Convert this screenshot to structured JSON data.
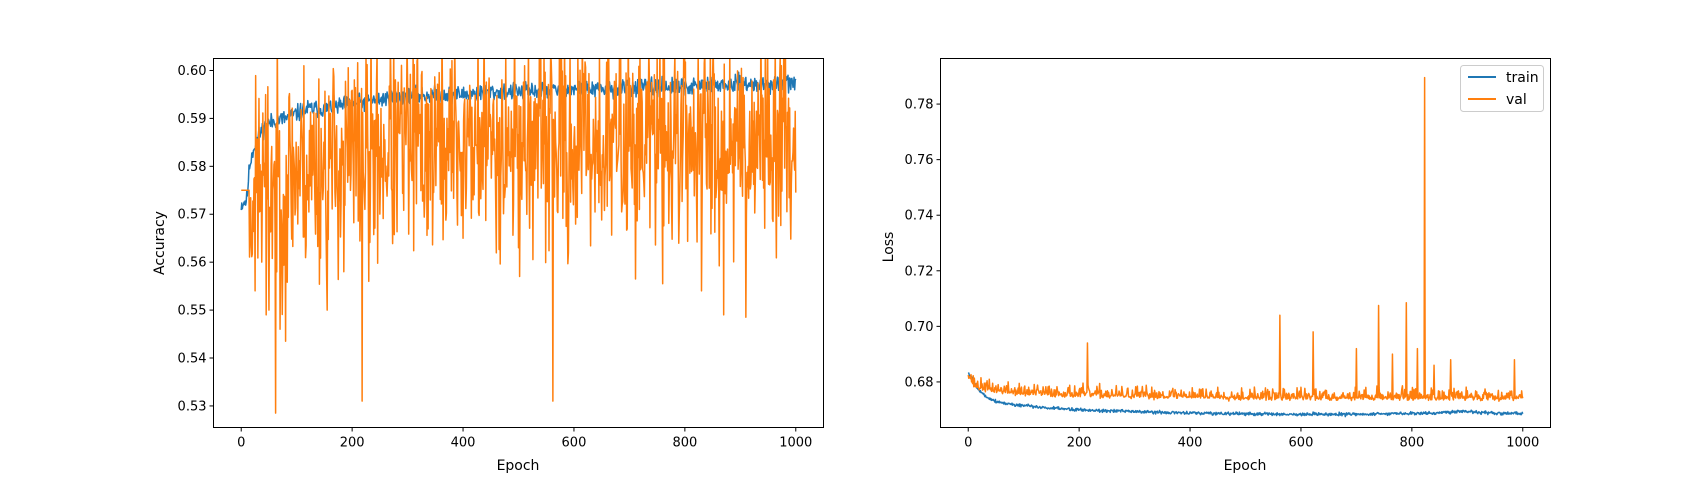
{
  "chart_data": [
    {
      "type": "line",
      "title": "",
      "xlabel": "Epoch",
      "ylabel": "Accuracy",
      "xlim": [
        -50,
        1050
      ],
      "ylim": [
        0.5255,
        0.6025
      ],
      "xticks": [
        0,
        200,
        400,
        600,
        800,
        1000
      ],
      "xtick_labels": [
        "0",
        "200",
        "400",
        "600",
        "800",
        "1000"
      ],
      "yticks": [
        0.53,
        0.54,
        0.55,
        0.56,
        0.57,
        0.58,
        0.59,
        0.6
      ],
      "ytick_labels": [
        "0.53",
        "0.54",
        "0.55",
        "0.56",
        "0.57",
        "0.58",
        "0.59",
        "0.60"
      ],
      "grid": false,
      "legend": null,
      "series": [
        {
          "color": "#1f77b4",
          "x": [
            0,
            10,
            15,
            20,
            30,
            40,
            50,
            60,
            80,
            100,
            120,
            150,
            200,
            250,
            300,
            350,
            400,
            450,
            500,
            550,
            600,
            650,
            700,
            750,
            800,
            850,
            900,
            950,
            1000
          ],
          "y": [
            0.572,
            0.573,
            0.58,
            0.583,
            0.586,
            0.588,
            0.589,
            0.5895,
            0.59,
            0.591,
            0.592,
            0.592,
            0.593,
            0.594,
            0.5945,
            0.595,
            0.595,
            0.5955,
            0.5955,
            0.596,
            0.596,
            0.596,
            0.5965,
            0.5965,
            0.5965,
            0.597,
            0.597,
            0.597,
            0.5975
          ],
          "noise": 0.0009,
          "seed": 11
        },
        {
          "color": "#ff7f0e",
          "x": [
            0,
            15,
            30,
            60,
            100,
            150,
            200,
            250,
            300,
            400,
            500,
            600,
            700,
            800,
            900,
            1000
          ],
          "y": [
            0.575,
            0.575,
            0.576,
            0.577,
            0.579,
            0.58,
            0.582,
            0.583,
            0.584,
            0.585,
            0.585,
            0.585,
            0.5855,
            0.586,
            0.586,
            0.5865
          ],
          "noise": 0.011,
          "spread_start": 15,
          "spikes": [
            [
              25,
              0.554
            ],
            [
              45,
              0.549
            ],
            [
              50,
              0.55
            ],
            [
              62,
              0.5285
            ],
            [
              70,
              0.546
            ],
            [
              80,
              0.5435
            ],
            [
              155,
              0.55
            ],
            [
              185,
              0.558
            ],
            [
              218,
              0.531
            ],
            [
              230,
              0.556
            ],
            [
              300,
              0.556
            ],
            [
              400,
              0.565
            ],
            [
              500,
              0.563
            ],
            [
              562,
              0.531
            ],
            [
              590,
              0.562
            ],
            [
              760,
              0.5555
            ],
            [
              830,
              0.554
            ],
            [
              870,
              0.549
            ],
            [
              910,
              0.5485
            ],
            [
              1000,
              0.5745
            ]
          ],
          "peaks": [
            [
              270,
              0.5965
            ],
            [
              300,
              0.5975
            ],
            [
              560,
              0.5975
            ],
            [
              740,
              0.5975
            ],
            [
              800,
              0.5985
            ],
            [
              850,
              0.5985
            ],
            [
              905,
              0.5985
            ],
            [
              960,
              0.598
            ]
          ],
          "seed": 23
        }
      ]
    },
    {
      "type": "line",
      "title": "",
      "xlabel": "Epoch",
      "ylabel": "Loss",
      "xlim": [
        -50,
        1050
      ],
      "ylim": [
        0.6636,
        0.7964
      ],
      "xticks": [
        0,
        200,
        400,
        600,
        800,
        1000
      ],
      "xtick_labels": [
        "0",
        "200",
        "400",
        "600",
        "800",
        "1000"
      ],
      "yticks": [
        0.68,
        0.7,
        0.72,
        0.74,
        0.76,
        0.78
      ],
      "ytick_labels": [
        "0.68",
        "0.70",
        "0.72",
        "0.74",
        "0.76",
        "0.78"
      ],
      "grid": false,
      "legend": "top-right",
      "series": [
        {
          "name": "train",
          "color": "#1f77b4",
          "x": [
            0,
            5,
            10,
            20,
            30,
            40,
            50,
            75,
            100,
            150,
            200,
            300,
            400,
            500,
            600,
            700,
            800,
            850,
            900,
            950,
            1000
          ],
          "y": [
            0.6832,
            0.682,
            0.68,
            0.677,
            0.675,
            0.674,
            0.673,
            0.672,
            0.6715,
            0.6705,
            0.67,
            0.6693,
            0.6688,
            0.6685,
            0.6683,
            0.6684,
            0.6686,
            0.669,
            0.6695,
            0.6688,
            0.6685
          ],
          "noise": 0.0003,
          "seed": 5
        },
        {
          "name": "val",
          "color": "#ff7f0e",
          "x": [
            0,
            10,
            20,
            50,
            100,
            200,
            300,
            400,
            500,
            600,
            700,
            800,
            900,
            1000
          ],
          "y": [
            0.683,
            0.679,
            0.678,
            0.677,
            0.676,
            0.6755,
            0.675,
            0.675,
            0.6745,
            0.6745,
            0.6745,
            0.6745,
            0.6745,
            0.6745
          ],
          "noise": 0.0016,
          "spikes": [
            [
              215,
              0.694
            ],
            [
              562,
              0.704
            ],
            [
              622,
              0.698
            ],
            [
              700,
              0.692
            ],
            [
              740,
              0.7075
            ],
            [
              765,
              0.69
            ],
            [
              790,
              0.7085
            ],
            [
              810,
              0.692
            ],
            [
              823,
              0.7895
            ],
            [
              840,
              0.686
            ],
            [
              870,
              0.688
            ],
            [
              985,
              0.688
            ]
          ],
          "seed": 37
        }
      ]
    }
  ]
}
